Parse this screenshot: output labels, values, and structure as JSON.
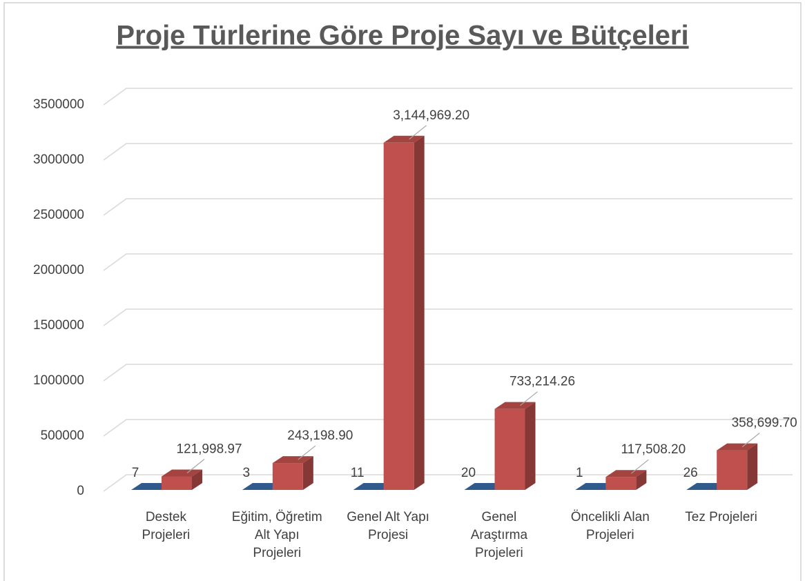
{
  "chart_data": {
    "type": "bar3d",
    "title": "Proje Türlerine Göre Proje Sayı ve Bütçeleri",
    "categories": [
      "Destek Projeleri",
      "Eğitim, Öğretim Alt Yapı Projeleri",
      "Genel Alt Yapı Projesi",
      "Genel Araştırma Projeleri",
      "Öncelikli Alan Projeleri",
      "Tez Projeleri"
    ],
    "series": [
      {
        "color": "#3a6aa5",
        "values": [
          7,
          3,
          11,
          20,
          1,
          26
        ]
      },
      {
        "color": "#c0504d",
        "values": [
          121998.97,
          243198.9,
          3144969.2,
          733214.26,
          117508.2,
          358699.7
        ],
        "value_labels": [
          "121,998.97",
          "243,198.90",
          "3,144,969.20",
          "733,214.26",
          "117,508.20",
          "358,699.70"
        ]
      }
    ],
    "ylim": [
      0,
      3500000
    ],
    "yticks": [
      0,
      500000,
      1000000,
      1500000,
      2000000,
      2500000,
      3000000,
      3500000
    ],
    "grid": true
  }
}
